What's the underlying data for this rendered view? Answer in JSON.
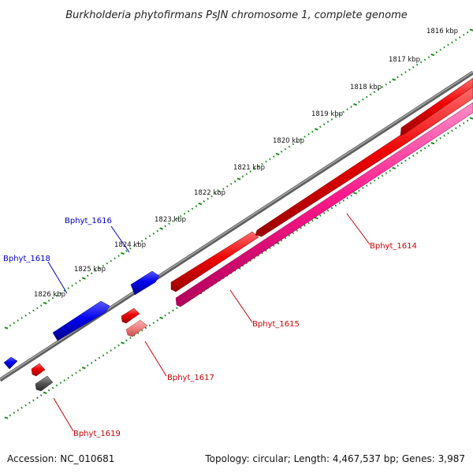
{
  "title": "Burkholderia phytofirmans PsJN chromosome 1, complete genome",
  "footer": {
    "accession": "Accession: NC_010681",
    "summary": "Topology: circular; Length: 4,467,537 bp; Genes: 3,987"
  },
  "ticks": {
    "labels": [
      "1816 kbp",
      "1817 kbp",
      "1818 kbp",
      "1819 kbp",
      "1820 kbp",
      "1821 kbp",
      "1822 kbp",
      "1823 kbp",
      "1824 kbp",
      "1825 kbp",
      "1826 kbp"
    ]
  },
  "genes": {
    "forward_label_color": "#0000cc",
    "reverse_label_color": "#cc0000",
    "labels": {
      "bphyt_1614": "Bphyt_1614",
      "bphyt_1615": "Bphyt_1615",
      "bphyt_1616": "Bphyt_1616",
      "bphyt_1617": "Bphyt_1617",
      "bphyt_1618": "Bphyt_1618",
      "bphyt_1619": "Bphyt_1619"
    }
  },
  "colors": {
    "forward_cds": "#0000ee",
    "reverse_cds": "#ee0000",
    "rrna": "#ff1a8c",
    "pseudo": "#f08080",
    "other": "#555555",
    "backbone": "#808080",
    "ticks": "#1a8a1a"
  }
}
